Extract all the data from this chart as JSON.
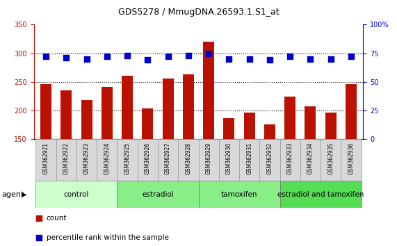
{
  "title": "GDS5278 / MmugDNA.26593.1.S1_at",
  "samples": [
    "GSM362921",
    "GSM362922",
    "GSM362923",
    "GSM362924",
    "GSM362925",
    "GSM362926",
    "GSM362927",
    "GSM362928",
    "GSM362929",
    "GSM362930",
    "GSM362931",
    "GSM362932",
    "GSM362933",
    "GSM362934",
    "GSM362935",
    "GSM362936"
  ],
  "counts": [
    246,
    235,
    218,
    241,
    261,
    203,
    256,
    263,
    320,
    186,
    196,
    176,
    224,
    207,
    196,
    246
  ],
  "percentile_ranks": [
    72,
    71,
    70,
    72,
    73,
    69,
    72,
    73,
    75,
    70,
    70,
    69,
    72,
    70,
    70,
    72
  ],
  "ylim_left": [
    150,
    350
  ],
  "ylim_right": [
    0,
    100
  ],
  "yticks_left": [
    150,
    200,
    250,
    300,
    350
  ],
  "yticks_right": [
    0,
    25,
    50,
    75,
    100
  ],
  "bar_color": "#bb1100",
  "dot_color": "#0000cc",
  "dot_size": 28,
  "groups": [
    {
      "label": "control",
      "start": 0,
      "end": 4,
      "color": "#ccffcc"
    },
    {
      "label": "estradiol",
      "start": 4,
      "end": 8,
      "color": "#88ee88"
    },
    {
      "label": "tamoxifen",
      "start": 8,
      "end": 12,
      "color": "#88ee88"
    },
    {
      "label": "estradiol and tamoxifen",
      "start": 12,
      "end": 16,
      "color": "#55dd55"
    }
  ],
  "agent_label": "agent",
  "legend_count_label": "count",
  "legend_pct_label": "percentile rank within the sample",
  "background_color": "#ffffff",
  "bar_width": 0.55,
  "tick_label_fontsize": 5.5,
  "title_fontsize": 9,
  "group_fontsize": 7.5,
  "legend_fontsize": 7.5,
  "agent_fontsize": 8
}
